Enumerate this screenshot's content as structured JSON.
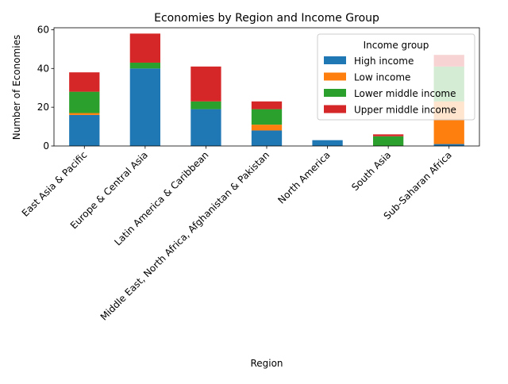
{
  "chart_data": {
    "type": "bar",
    "stacked": true,
    "title": "Economies by Region and Income Group",
    "xlabel": "Region",
    "ylabel": "Number of Economies",
    "ylim": [
      0,
      61
    ],
    "yticks": [
      0,
      20,
      40,
      60
    ],
    "grid": false,
    "legend": {
      "title": "Income group",
      "placement": "top-right"
    },
    "categories": [
      "East Asia & Pacific",
      "Europe & Central Asia",
      "Latin America & Caribbean",
      "Middle East, North Africa, Afghanistan & Pakistan",
      "North America",
      "South Asia",
      "Sub-Saharan Africa"
    ],
    "series": [
      {
        "name": "High income",
        "color": "#1f77b4",
        "values": [
          16,
          40,
          19,
          8,
          3,
          0,
          1
        ]
      },
      {
        "name": "Low income",
        "color": "#ff7f0e",
        "values": [
          1,
          0,
          0,
          3,
          0,
          0,
          22
        ]
      },
      {
        "name": "Lower middle income",
        "color": "#2ca02c",
        "values": [
          11,
          3,
          4,
          8,
          0,
          5,
          18
        ]
      },
      {
        "name": "Upper middle income",
        "color": "#d62728",
        "values": [
          10,
          15,
          18,
          4,
          0,
          1,
          6
        ]
      }
    ]
  }
}
